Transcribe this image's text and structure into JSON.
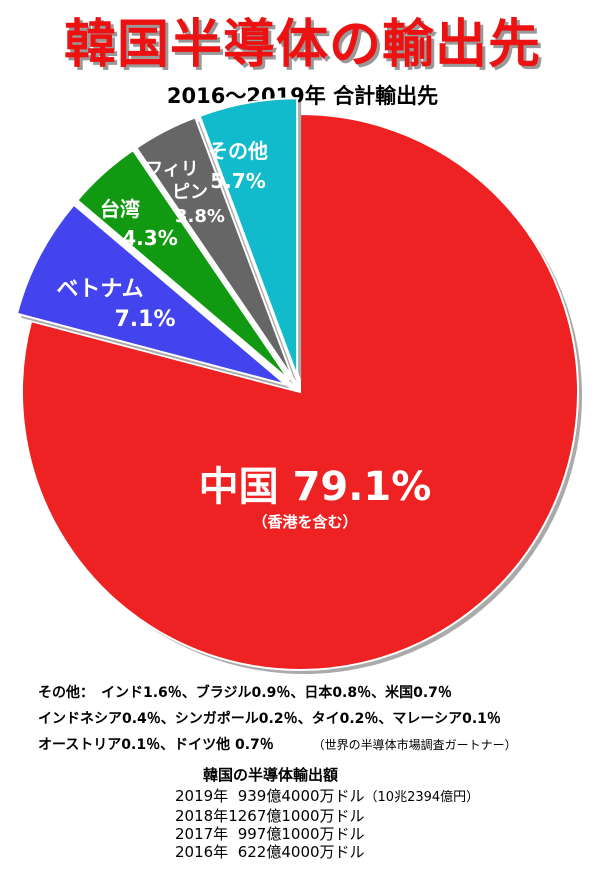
{
  "header": {
    "title": "韓国半導体の輸出先",
    "subtitle": "2016～2019年 合計輸出先"
  },
  "chart_data": {
    "type": "pie",
    "slices": [
      {
        "key": "china",
        "label": "中国",
        "value": 79.1,
        "value_label": "79.1%",
        "sub_label": "（香港を含む）",
        "color": "#ee2222"
      },
      {
        "key": "vietnam",
        "label": "ベトナム",
        "value": 7.1,
        "value_label": "7.1%",
        "color": "#4444ee"
      },
      {
        "key": "taiwan",
        "label": "台湾",
        "value": 4.3,
        "value_label": "4.3%",
        "color": "#119911"
      },
      {
        "key": "philippines",
        "label_lines": [
          "フィリ",
          "ピン"
        ],
        "value": 3.8,
        "value_label": "3.8%",
        "color": "#666666"
      },
      {
        "key": "other",
        "label": "その他",
        "value": 5.7,
        "value_label": "5.7%",
        "color": "#11bbcc"
      }
    ]
  },
  "other_breakdown": {
    "line1": "その他：　インド1.6％、ブラジル0.9％、日本0.8％、米国0.7％",
    "line2": "インドネシア0.4％、シンガポール0.2％、タイ0.2％、マレーシア0.1％",
    "line3": "オーストリア0.1％、ドイツ他 0.7％",
    "source": "（世界の半導体市場調査ガートナー）"
  },
  "exports": {
    "heading": "韓国の半導体輸出額",
    "rows": [
      {
        "year": "2019年",
        "amount": "  939億4000万ドル",
        "note": "（10兆2394億円）"
      },
      {
        "year": "2018年",
        "amount": "1267億1000万ドル",
        "note": ""
      },
      {
        "year": "2017年",
        "amount": "  997億1000万ドル",
        "note": ""
      },
      {
        "year": "2016年",
        "amount": "  622億4000万ドル",
        "note": ""
      }
    ]
  }
}
